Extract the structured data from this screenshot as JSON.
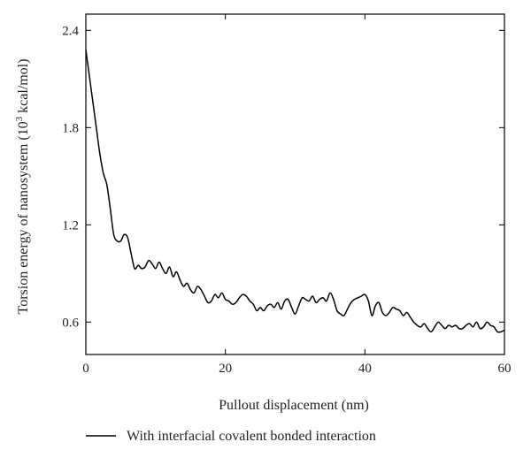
{
  "chart_data": {
    "type": "line",
    "title": "",
    "xlabel": "Pullout displacement (nm)",
    "ylabel": {
      "prefix": "Torsion energy of nanosystem (10",
      "superscript": "3",
      "suffix": " kcal/mol)"
    },
    "xlim": [
      0,
      60
    ],
    "ylim": [
      0.4,
      2.5
    ],
    "xticks": [
      0,
      20,
      40,
      60
    ],
    "yticks": [
      0.6,
      1.2,
      1.8,
      2.4
    ],
    "xtick_labels": [
      "0",
      "20",
      "40",
      "60"
    ],
    "ytick_labels": [
      "0.6",
      "1.2",
      "1.8",
      "2.4"
    ],
    "grid": false,
    "legend_position": "bottom",
    "line_color": "#000000",
    "series": [
      {
        "name": "With interfacial covalent bonded interaction",
        "x": [
          0,
          0.5,
          1,
          1.5,
          2,
          2.5,
          3,
          3.5,
          4,
          4.5,
          5,
          5.5,
          6,
          6.5,
          7,
          7.5,
          8,
          8.5,
          9,
          9.5,
          10,
          10.5,
          11,
          11.5,
          12,
          12.5,
          13,
          13.5,
          14,
          14.5,
          15,
          15.5,
          16,
          16.5,
          17,
          17.5,
          18,
          18.5,
          19,
          19.5,
          20,
          20.5,
          21,
          21.5,
          22,
          22.5,
          23,
          23.5,
          24,
          24.5,
          25,
          25.5,
          26,
          26.5,
          27,
          27.5,
          28,
          28.5,
          29,
          29.5,
          30,
          30.5,
          31,
          31.5,
          32,
          32.5,
          33,
          33.5,
          34,
          34.5,
          35,
          35.5,
          36,
          36.5,
          37,
          37.5,
          38,
          38.5,
          39,
          39.5,
          40,
          40.5,
          41,
          41.5,
          42,
          42.5,
          43,
          43.5,
          44,
          44.5,
          45,
          45.5,
          46,
          46.5,
          47,
          47.5,
          48,
          48.5,
          49,
          49.5,
          50,
          50.5,
          51,
          51.5,
          52,
          52.5,
          53,
          53.5,
          54,
          54.5,
          55,
          55.5,
          56,
          56.5,
          57,
          57.5,
          58,
          58.5,
          59,
          59.5,
          60
        ],
        "values": [
          2.28,
          2.12,
          1.96,
          1.8,
          1.64,
          1.52,
          1.45,
          1.3,
          1.14,
          1.1,
          1.1,
          1.14,
          1.12,
          1.02,
          0.93,
          0.95,
          0.93,
          0.94,
          0.98,
          0.96,
          0.93,
          0.97,
          0.93,
          0.9,
          0.94,
          0.88,
          0.91,
          0.86,
          0.82,
          0.84,
          0.8,
          0.78,
          0.82,
          0.8,
          0.76,
          0.72,
          0.73,
          0.77,
          0.75,
          0.78,
          0.74,
          0.73,
          0.71,
          0.72,
          0.75,
          0.77,
          0.76,
          0.73,
          0.71,
          0.67,
          0.69,
          0.67,
          0.7,
          0.71,
          0.69,
          0.72,
          0.68,
          0.73,
          0.74,
          0.69,
          0.65,
          0.7,
          0.75,
          0.74,
          0.73,
          0.76,
          0.72,
          0.74,
          0.75,
          0.73,
          0.78,
          0.74,
          0.67,
          0.65,
          0.64,
          0.68,
          0.72,
          0.74,
          0.75,
          0.76,
          0.77,
          0.73,
          0.64,
          0.7,
          0.72,
          0.66,
          0.64,
          0.66,
          0.69,
          0.68,
          0.67,
          0.64,
          0.66,
          0.63,
          0.6,
          0.58,
          0.57,
          0.59,
          0.56,
          0.54,
          0.57,
          0.6,
          0.58,
          0.56,
          0.58,
          0.57,
          0.58,
          0.56,
          0.56,
          0.58,
          0.59,
          0.57,
          0.6,
          0.56,
          0.57,
          0.6,
          0.58,
          0.57,
          0.54,
          0.54,
          0.55
        ]
      }
    ]
  }
}
